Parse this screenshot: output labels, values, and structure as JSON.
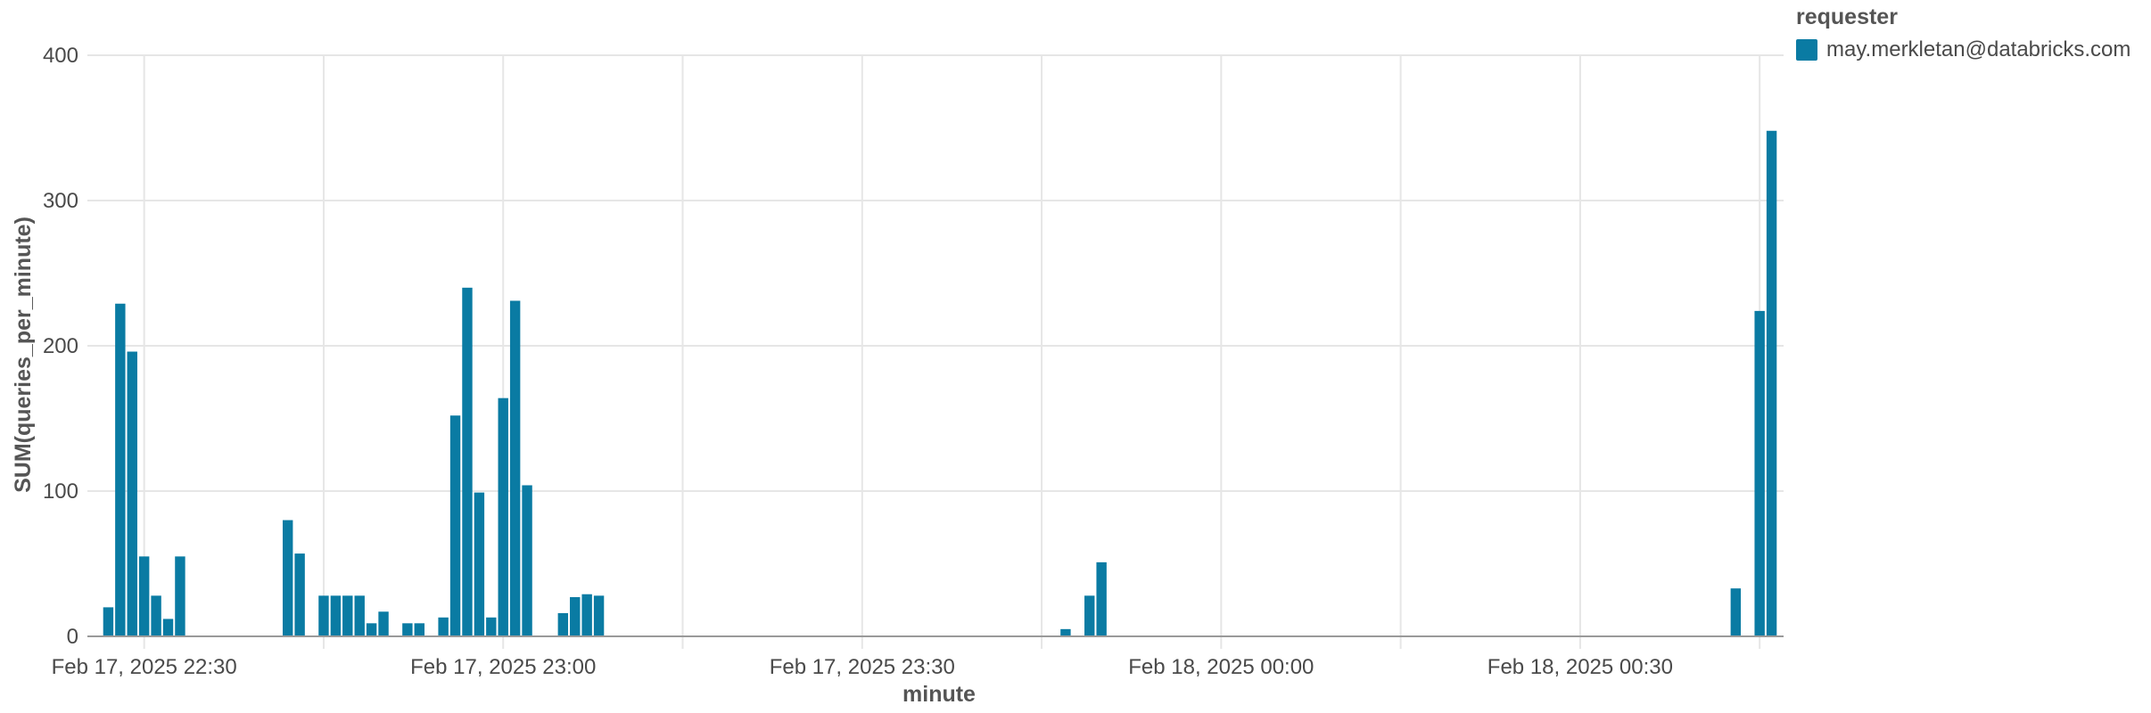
{
  "chart_data": {
    "type": "bar",
    "xlabel": "minute",
    "ylabel": "SUM(queries_per_minute)",
    "ylim": [
      0,
      400
    ],
    "yticks": [
      0,
      100,
      200,
      300,
      400
    ],
    "xlim": [
      "2025-02-17 22:26",
      "2025-02-18 00:47"
    ],
    "xticks": [
      {
        "time": "2025-02-17 22:30",
        "label": "Feb 17, 2025 22:30"
      },
      {
        "time": "2025-02-17 23:00",
        "label": "Feb 17, 2025 23:00"
      },
      {
        "time": "2025-02-17 23:30",
        "label": "Feb 17, 2025 23:30"
      },
      {
        "time": "2025-02-18 00:00",
        "label": "Feb 18, 2025 00:00"
      },
      {
        "time": "2025-02-18 00:30",
        "label": "Feb 18, 2025 00:30"
      }
    ],
    "grid": true,
    "legend_title": "requester",
    "legend_position": "top-right",
    "series": [
      {
        "name": "may.merkletan@databricks.com",
        "color": "#0a7ba3",
        "points": [
          {
            "x": "2025-02-17 22:27",
            "y": 20
          },
          {
            "x": "2025-02-17 22:28",
            "y": 229
          },
          {
            "x": "2025-02-17 22:29",
            "y": 196
          },
          {
            "x": "2025-02-17 22:30",
            "y": 55
          },
          {
            "x": "2025-02-17 22:31",
            "y": 28
          },
          {
            "x": "2025-02-17 22:32",
            "y": 12
          },
          {
            "x": "2025-02-17 22:33",
            "y": 55
          },
          {
            "x": "2025-02-17 22:42",
            "y": 80
          },
          {
            "x": "2025-02-17 22:43",
            "y": 57
          },
          {
            "x": "2025-02-17 22:45",
            "y": 28
          },
          {
            "x": "2025-02-17 22:46",
            "y": 28
          },
          {
            "x": "2025-02-17 22:47",
            "y": 28
          },
          {
            "x": "2025-02-17 22:48",
            "y": 28
          },
          {
            "x": "2025-02-17 22:49",
            "y": 9
          },
          {
            "x": "2025-02-17 22:50",
            "y": 17
          },
          {
            "x": "2025-02-17 22:52",
            "y": 9
          },
          {
            "x": "2025-02-17 22:53",
            "y": 9
          },
          {
            "x": "2025-02-17 22:55",
            "y": 13
          },
          {
            "x": "2025-02-17 22:56",
            "y": 152
          },
          {
            "x": "2025-02-17 22:57",
            "y": 240
          },
          {
            "x": "2025-02-17 22:58",
            "y": 99
          },
          {
            "x": "2025-02-17 22:59",
            "y": 13
          },
          {
            "x": "2025-02-17 23:00",
            "y": 164
          },
          {
            "x": "2025-02-17 23:01",
            "y": 231
          },
          {
            "x": "2025-02-17 23:02",
            "y": 104
          },
          {
            "x": "2025-02-17 23:05",
            "y": 16
          },
          {
            "x": "2025-02-17 23:06",
            "y": 27
          },
          {
            "x": "2025-02-17 23:07",
            "y": 29
          },
          {
            "x": "2025-02-17 23:08",
            "y": 28
          },
          {
            "x": "2025-02-17 23:47",
            "y": 5
          },
          {
            "x": "2025-02-17 23:49",
            "y": 28
          },
          {
            "x": "2025-02-17 23:50",
            "y": 51
          },
          {
            "x": "2025-02-18 00:43",
            "y": 33
          },
          {
            "x": "2025-02-18 00:45",
            "y": 224
          },
          {
            "x": "2025-02-18 00:46",
            "y": 348
          }
        ]
      }
    ]
  }
}
